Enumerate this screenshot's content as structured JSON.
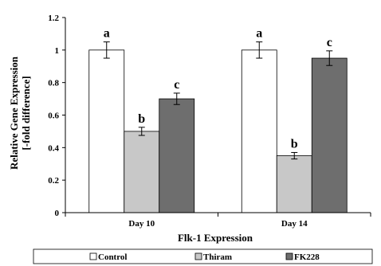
{
  "chart_data": {
    "type": "bar",
    "categories": [
      "Day 10",
      "Day 14"
    ],
    "series": [
      {
        "name": "Control",
        "values": [
          1.0,
          1.0
        ],
        "errors": [
          0.05,
          0.05
        ],
        "color": "#ffffff"
      },
      {
        "name": "Thiram",
        "values": [
          0.5,
          0.35
        ],
        "errors": [
          0.025,
          0.02
        ],
        "color": "#c8c8c8"
      },
      {
        "name": "FK228",
        "values": [
          0.7,
          0.95
        ],
        "errors": [
          0.035,
          0.045
        ],
        "color": "#6e6e6e"
      }
    ],
    "significance_labels": [
      [
        "a",
        "b",
        "c"
      ],
      [
        "a",
        "b",
        "c"
      ]
    ],
    "xlabel": "Flk-1 Expression",
    "ylabel_lines": [
      "Relative Gene Expression",
      "[-fold difference]"
    ],
    "ylim": [
      0,
      1.2
    ],
    "yticks": [
      0,
      0.2,
      0.4,
      0.6,
      0.8,
      1,
      1.2
    ],
    "ytick_labels": [
      "0",
      "0.2",
      "0.4",
      "0.6",
      "0.8",
      "1",
      "1.2"
    ],
    "legend_position": "bottom",
    "grid": false
  }
}
